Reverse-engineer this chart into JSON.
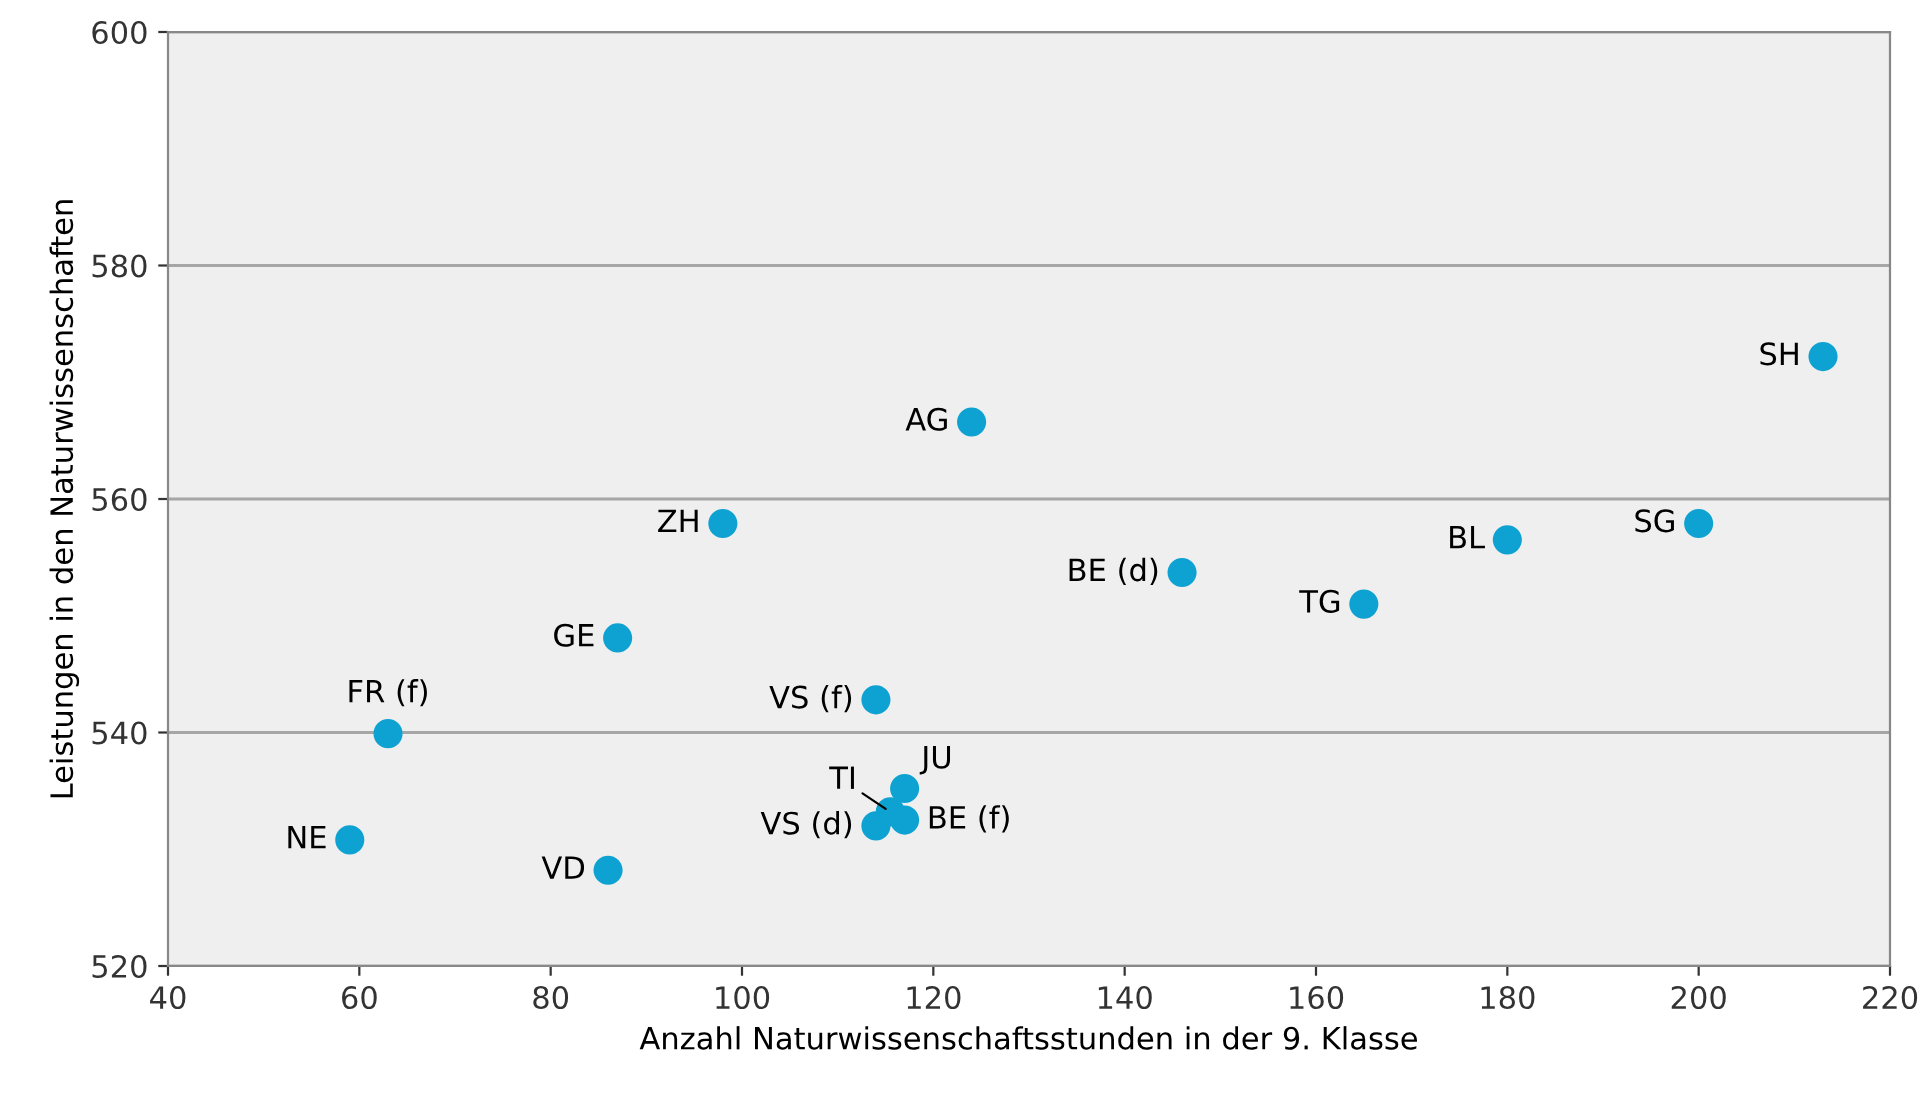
{
  "chart_data": {
    "type": "scatter",
    "xlabel": "Anzahl Naturwissenschaftsstunden in der 9. Klasse",
    "ylabel": "Leistungen in den Naturwissenschaften",
    "x": [
      213,
      124,
      98,
      146,
      180,
      200,
      165,
      87,
      63,
      114,
      59,
      86,
      117,
      117,
      114,
      115.5
    ],
    "values": [
      572.2,
      566.6,
      557.9,
      553.7,
      556.5,
      557.9,
      551,
      548.1,
      539.9,
      542.8,
      530.8,
      528.2,
      535.2,
      532.5,
      532,
      533.2
    ],
    "color": "#0ea2d3",
    "marker": "circle",
    "annotations": [
      {
        "text": "SH",
        "x": 213,
        "y": 572.2
      },
      {
        "text": "AG",
        "x": 124,
        "y": 566.6
      },
      {
        "text": "ZH",
        "x": 98,
        "y": 557.9
      },
      {
        "text": "BE (d)",
        "x": 146,
        "y": 553.7
      },
      {
        "text": "BL",
        "x": 180,
        "y": 556.5
      },
      {
        "text": "SG",
        "x": 200,
        "y": 557.9
      },
      {
        "text": "TG",
        "x": 165,
        "y": 551
      },
      {
        "text": "GE",
        "x": 87,
        "y": 548.1
      },
      {
        "text": "FR (f)",
        "x": 63,
        "y": 539.9
      },
      {
        "text": "VS (f)",
        "x": 114,
        "y": 542.8
      },
      {
        "text": "NE",
        "x": 59,
        "y": 530.8
      },
      {
        "text": "VD",
        "x": 86,
        "y": 528.2
      },
      {
        "text": "JU",
        "x": 117,
        "y": 535.2
      },
      {
        "text": "BE (f)",
        "x": 117,
        "y": 532.5
      },
      {
        "text": "VS (d)",
        "x": 114,
        "y": 532
      },
      {
        "text": "TI",
        "x": 115.5,
        "y": 533.2
      }
    ],
    "xlim": [
      40,
      220
    ],
    "xticks": [
      40,
      60,
      80,
      100,
      120,
      140,
      160,
      180,
      200,
      220
    ],
    "ylim": [
      520,
      600
    ],
    "yticks": [
      520,
      540,
      560,
      580,
      600
    ],
    "grid": "y"
  }
}
